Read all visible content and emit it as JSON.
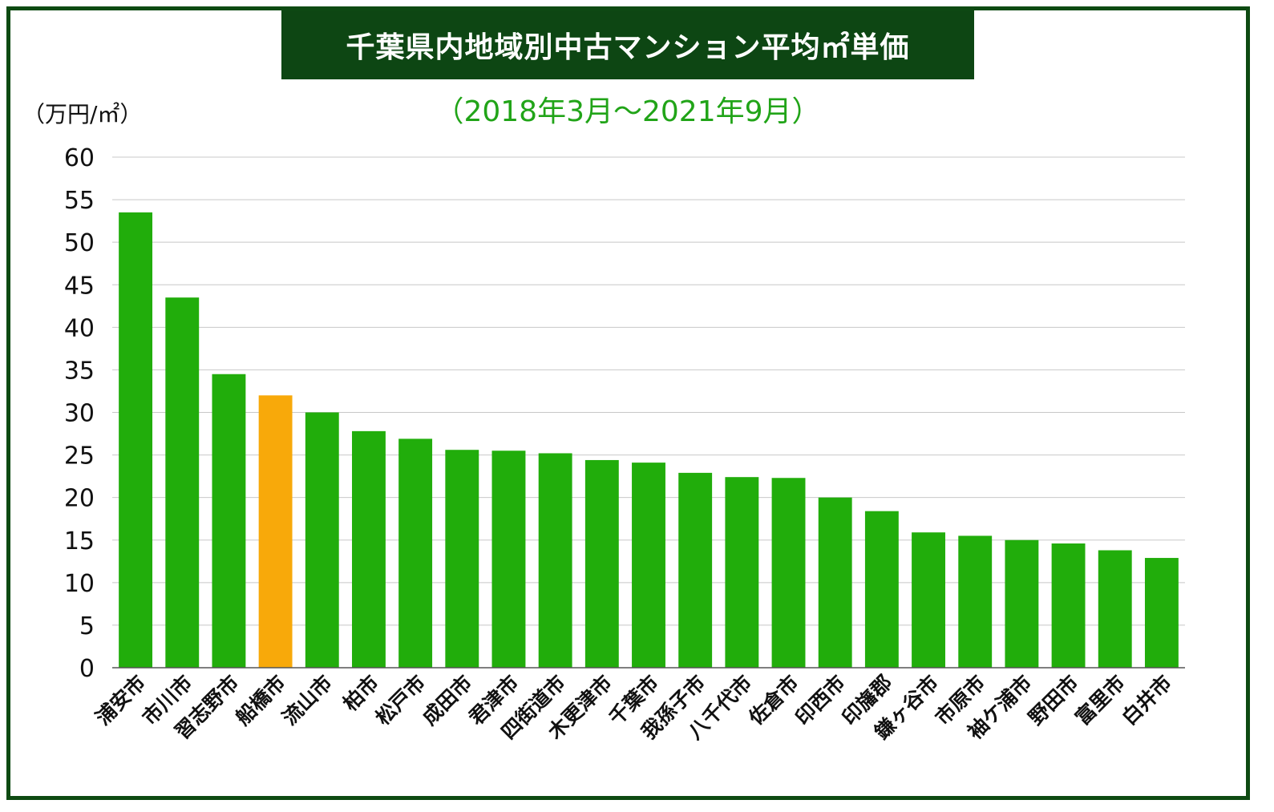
{
  "chart_data": {
    "type": "bar",
    "title": "千葉県内地域別中古マンション平均㎡単価",
    "subtitle": "（2018年3月〜2021年9月）",
    "ylabel": "（万円/㎡）",
    "ylim": [
      0,
      60
    ],
    "yticks": [
      "0",
      "5",
      "10",
      "15",
      "20",
      "25",
      "30",
      "35",
      "40",
      "45",
      "50",
      "55",
      "60"
    ],
    "grid": true,
    "categories": [
      "浦安市",
      "市川市",
      "習志野市",
      "船橋市",
      "流山市",
      "柏市",
      "松戸市",
      "成田市",
      "君津市",
      "四街道市",
      "木更津市",
      "千葉市",
      "我孫子市",
      "八千代市",
      "佐倉市",
      "印西市",
      "印旛郡",
      "鎌ヶ谷市",
      "市原市",
      "袖ケ浦市",
      "野田市",
      "富里市",
      "白井市"
    ],
    "values": [
      53.5,
      43.5,
      34.5,
      32.0,
      30.0,
      27.8,
      26.9,
      25.6,
      25.5,
      25.2,
      24.4,
      24.1,
      22.9,
      22.4,
      22.3,
      20.0,
      18.4,
      15.9,
      15.5,
      15.0,
      14.6,
      13.8,
      12.9
    ],
    "colors": {
      "default": "#21ad0b",
      "highlight": "#f8a90a"
    },
    "highlight_category": "船橋市"
  }
}
